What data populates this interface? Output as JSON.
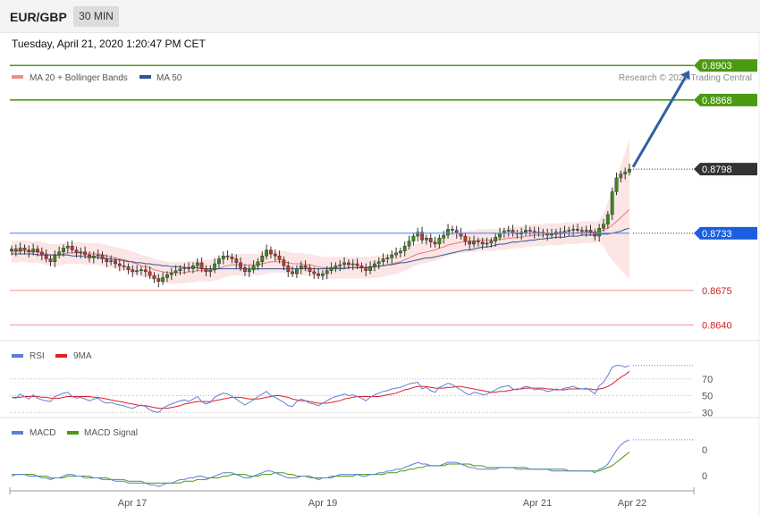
{
  "header": {
    "symbol": "EUR/GBP",
    "timeframe": "30 MIN",
    "datetime": "Tuesday, April 21, 2020 1:20:47 PM CET"
  },
  "chart_data": {
    "type": "candlestick",
    "copyright": "Research © 2020 Trading Central",
    "x_ticks": [
      "Apr 17",
      "Apr 19",
      "Apr 21",
      "Apr 22"
    ],
    "price_panel": {
      "legend": [
        {
          "name": "MA 20 + Bollinger Bands",
          "color": "#f08c8c"
        },
        {
          "name": "MA 50",
          "color": "#2f5597"
        }
      ],
      "ylim": [
        0.8625,
        0.8915
      ],
      "levels": [
        {
          "value": 0.8903,
          "label": "0.8903",
          "color": "#4c9a12",
          "kind": "resistance"
        },
        {
          "value": 0.8868,
          "label": "0.8868",
          "color": "#4c9a12",
          "kind": "resistance"
        },
        {
          "value": 0.8798,
          "label": "0.8798",
          "color": "#333333",
          "kind": "last"
        },
        {
          "value": 0.8733,
          "label": "0.8733",
          "color": "#1a5fe0",
          "kind": "pivot"
        },
        {
          "value": 0.8675,
          "label": "0.8675",
          "color": "#e06666",
          "kind": "support"
        },
        {
          "value": 0.864,
          "label": "0.8640",
          "color": "#e06666",
          "kind": "support"
        }
      ],
      "arrow": {
        "from": 0.88,
        "to": 0.8898
      },
      "closes": [
        0.8717,
        0.8715,
        0.8718,
        0.8716,
        0.8714,
        0.8717,
        0.8714,
        0.8711,
        0.8707,
        0.8704,
        0.8711,
        0.8714,
        0.8718,
        0.872,
        0.8716,
        0.8713,
        0.8714,
        0.8711,
        0.8708,
        0.871,
        0.8711,
        0.8707,
        0.8704,
        0.8705,
        0.8702,
        0.87,
        0.8699,
        0.8696,
        0.8694,
        0.8695,
        0.8696,
        0.8694,
        0.869,
        0.8687,
        0.8684,
        0.8688,
        0.8691,
        0.8693,
        0.8695,
        0.8697,
        0.8698,
        0.8697,
        0.87,
        0.8703,
        0.8697,
        0.8694,
        0.8696,
        0.8702,
        0.8707,
        0.871,
        0.8709,
        0.8707,
        0.8703,
        0.8698,
        0.8694,
        0.8696,
        0.87,
        0.8704,
        0.871,
        0.8716,
        0.8712,
        0.871,
        0.8706,
        0.87,
        0.8694,
        0.8692,
        0.8697,
        0.87,
        0.8698,
        0.8694,
        0.8692,
        0.869,
        0.8692,
        0.8695,
        0.8698,
        0.87,
        0.8701,
        0.8703,
        0.8701,
        0.8702,
        0.87,
        0.8698,
        0.8695,
        0.8699,
        0.8702,
        0.8704,
        0.8707,
        0.8708,
        0.8711,
        0.8713,
        0.8715,
        0.872,
        0.8725,
        0.873,
        0.8734,
        0.8726,
        0.8728,
        0.8724,
        0.8722,
        0.8728,
        0.8731,
        0.8737,
        0.8736,
        0.8733,
        0.873,
        0.8725,
        0.8722,
        0.8725,
        0.8724,
        0.8722,
        0.8723,
        0.8725,
        0.8729,
        0.8733,
        0.8735,
        0.8736,
        0.8733,
        0.8732,
        0.8734,
        0.8736,
        0.8735,
        0.8733,
        0.8734,
        0.8733,
        0.8731,
        0.8732,
        0.8734,
        0.8733,
        0.8735,
        0.8736,
        0.8737,
        0.8736,
        0.8735,
        0.8736,
        0.8734,
        0.873,
        0.8738,
        0.8742,
        0.8752,
        0.8775,
        0.8789,
        0.8793,
        0.8795,
        0.8798
      ],
      "ma20": [
        0.8714,
        0.8714,
        0.8715,
        0.8715,
        0.8714,
        0.8714,
        0.8714,
        0.8713,
        0.8712,
        0.8711,
        0.8711,
        0.8711,
        0.8712,
        0.8713,
        0.8713,
        0.8713,
        0.8713,
        0.8712,
        0.8712,
        0.8712,
        0.8712,
        0.8711,
        0.871,
        0.8709,
        0.8708,
        0.8707,
        0.8706,
        0.8705,
        0.8703,
        0.8702,
        0.87,
        0.8699,
        0.8698,
        0.8696,
        0.8695,
        0.8694,
        0.8693,
        0.8693,
        0.8693,
        0.8693,
        0.8693,
        0.8694,
        0.8694,
        0.8695,
        0.8695,
        0.8695,
        0.8695,
        0.8696,
        0.8697,
        0.8699,
        0.87,
        0.8701,
        0.8701,
        0.8701,
        0.8701,
        0.8701,
        0.8701,
        0.8701,
        0.8702,
        0.8703,
        0.8704,
        0.8704,
        0.8704,
        0.8704,
        0.8703,
        0.8702,
        0.8702,
        0.8702,
        0.8701,
        0.8701,
        0.87,
        0.8699,
        0.8698,
        0.8698,
        0.8698,
        0.8698,
        0.8698,
        0.8698,
        0.8698,
        0.8698,
        0.8698,
        0.8698,
        0.8698,
        0.8698,
        0.8699,
        0.8699,
        0.87,
        0.8701,
        0.8702,
        0.8703,
        0.8704,
        0.8706,
        0.8708,
        0.871,
        0.8712,
        0.8713,
        0.8714,
        0.8715,
        0.8716,
        0.8718,
        0.8719,
        0.8721,
        0.8722,
        0.8723,
        0.8724,
        0.8724,
        0.8725,
        0.8725,
        0.8726,
        0.8726,
        0.8726,
        0.8726,
        0.8726,
        0.8727,
        0.8727,
        0.8728,
        0.8728,
        0.8729,
        0.8729,
        0.873,
        0.873,
        0.8731,
        0.8731,
        0.8731,
        0.8732,
        0.8732,
        0.8732,
        0.8732,
        0.8733,
        0.8733,
        0.8733,
        0.8733,
        0.8734,
        0.8734,
        0.8734,
        0.8734,
        0.8735,
        0.8736,
        0.8738,
        0.8741,
        0.8745,
        0.8749,
        0.8753,
        0.8757
      ],
      "ma50": [
        0.8712,
        0.8712,
        0.8712,
        0.8712,
        0.8712,
        0.8712,
        0.8711,
        0.8711,
        0.8711,
        0.8711,
        0.8711,
        0.8711,
        0.8711,
        0.8711,
        0.871,
        0.871,
        0.871,
        0.8709,
        0.8709,
        0.8709,
        0.8708,
        0.8708,
        0.8707,
        0.8707,
        0.8706,
        0.8706,
        0.8705,
        0.8704,
        0.8704,
        0.8703,
        0.8703,
        0.8702,
        0.8702,
        0.8701,
        0.8701,
        0.87,
        0.87,
        0.8699,
        0.8699,
        0.8699,
        0.8698,
        0.8698,
        0.8698,
        0.8698,
        0.8697,
        0.8697,
        0.8697,
        0.8697,
        0.8697,
        0.8697,
        0.8697,
        0.8697,
        0.8697,
        0.8697,
        0.8697,
        0.8697,
        0.8697,
        0.8697,
        0.8697,
        0.8697,
        0.8697,
        0.8697,
        0.8697,
        0.8697,
        0.8697,
        0.8697,
        0.8697,
        0.8697,
        0.8697,
        0.8697,
        0.8697,
        0.8697,
        0.8697,
        0.8697,
        0.8697,
        0.8697,
        0.8697,
        0.8697,
        0.8698,
        0.8698,
        0.8698,
        0.8698,
        0.8698,
        0.8699,
        0.8699,
        0.87,
        0.87,
        0.8701,
        0.8701,
        0.8702,
        0.8703,
        0.8703,
        0.8704,
        0.8705,
        0.8706,
        0.8707,
        0.8708,
        0.8708,
        0.8709,
        0.871,
        0.8711,
        0.8712,
        0.8713,
        0.8714,
        0.8715,
        0.8716,
        0.8716,
        0.8717,
        0.8718,
        0.8719,
        0.8719,
        0.872,
        0.8721,
        0.8722,
        0.8722,
        0.8723,
        0.8724,
        0.8724,
        0.8725,
        0.8725,
        0.8726,
        0.8726,
        0.8727,
        0.8727,
        0.8728,
        0.8728,
        0.8729,
        0.8729,
        0.8729,
        0.873,
        0.873,
        0.873,
        0.8731,
        0.8731,
        0.8731,
        0.8731,
        0.8732,
        0.8732,
        0.8732,
        0.8733,
        0.8734,
        0.8735,
        0.8737,
        0.8738
      ]
    },
    "rsi_panel": {
      "legend": [
        {
          "name": "RSI",
          "color": "#5b7fd6"
        },
        {
          "name": "9MA",
          "color": "#e02020"
        }
      ],
      "ylim": [
        25,
        90
      ],
      "levels": [
        70,
        50,
        30
      ],
      "tick_labels": [
        "70",
        "50",
        "30"
      ],
      "rsi": [
        48,
        47,
        52,
        49,
        46,
        51,
        47,
        45,
        44,
        43,
        49,
        51,
        53,
        54,
        49,
        47,
        48,
        46,
        44,
        46,
        47,
        43,
        41,
        42,
        40,
        39,
        38,
        36,
        35,
        37,
        39,
        37,
        33,
        31,
        30,
        35,
        38,
        40,
        42,
        44,
        45,
        43,
        46,
        49,
        43,
        40,
        42,
        48,
        51,
        53,
        52,
        49,
        46,
        42,
        39,
        42,
        45,
        49,
        52,
        55,
        50,
        48,
        45,
        42,
        38,
        37,
        43,
        46,
        44,
        41,
        40,
        38,
        41,
        44,
        47,
        49,
        50,
        52,
        50,
        51,
        49,
        47,
        44,
        48,
        51,
        53,
        55,
        56,
        58,
        59,
        60,
        62,
        64,
        65,
        66,
        58,
        60,
        56,
        54,
        60,
        62,
        65,
        63,
        60,
        57,
        53,
        51,
        54,
        53,
        51,
        52,
        54,
        57,
        60,
        61,
        62,
        58,
        57,
        59,
        61,
        60,
        57,
        58,
        57,
        55,
        56,
        58,
        57,
        59,
        60,
        61,
        59,
        58,
        59,
        56,
        52,
        62,
        66,
        74,
        84,
        86,
        86,
        84,
        86
      ],
      "ma9": [
        48,
        48,
        48,
        49,
        49,
        49,
        49,
        48,
        48,
        47,
        47,
        47,
        48,
        49,
        49,
        49,
        49,
        49,
        49,
        48,
        48,
        47,
        46,
        45,
        44,
        43,
        42,
        41,
        40,
        39,
        38,
        38,
        37,
        36,
        35,
        35,
        35,
        36,
        37,
        38,
        40,
        41,
        42,
        43,
        43,
        43,
        43,
        44,
        45,
        46,
        47,
        48,
        48,
        48,
        47,
        46,
        46,
        46,
        47,
        48,
        49,
        50,
        50,
        49,
        48,
        46,
        45,
        44,
        44,
        43,
        42,
        41,
        41,
        41,
        42,
        43,
        44,
        46,
        47,
        48,
        49,
        49,
        49,
        49,
        49,
        49,
        50,
        51,
        52,
        53,
        55,
        57,
        58,
        60,
        61,
        61,
        61,
        60,
        59,
        59,
        59,
        60,
        60,
        61,
        61,
        60,
        59,
        58,
        57,
        56,
        55,
        54,
        54,
        55,
        55,
        56,
        57,
        58,
        58,
        59,
        59,
        59,
        59,
        59,
        58,
        58,
        57,
        57,
        57,
        58,
        58,
        58,
        58,
        58,
        58,
        57,
        58,
        59,
        61,
        64,
        68,
        72,
        75,
        79
      ]
    },
    "macd_panel": {
      "legend": [
        {
          "name": "MACD",
          "color": "#5b7fd6"
        },
        {
          "name": "MACD Signal",
          "color": "#4c9a12"
        }
      ],
      "ylim": [
        -0.0008,
        0.0022
      ],
      "tick_labels": [
        "0",
        "0"
      ],
      "macd": [
        0.0,
        0.0001,
        0.0001,
        0.0001,
        0.0,
        0.0,
        0.0,
        -0.0001,
        -0.0001,
        -0.0002,
        -0.0001,
        -0.0001,
        0.0,
        0.0001,
        0.0001,
        0.0,
        0.0,
        -0.0001,
        -0.0001,
        -0.0001,
        -0.0001,
        -0.0002,
        -0.0002,
        -0.0002,
        -0.0003,
        -0.0003,
        -0.0003,
        -0.0004,
        -0.0004,
        -0.0004,
        -0.0004,
        -0.0004,
        -0.0005,
        -0.0005,
        -0.0006,
        -0.0005,
        -0.0004,
        -0.0004,
        -0.0003,
        -0.0002,
        -0.0002,
        -0.0001,
        -0.0001,
        0.0,
        0.0,
        -0.0001,
        -0.0001,
        0.0,
        0.0001,
        0.0002,
        0.0002,
        0.0002,
        0.0001,
        0.0,
        -0.0001,
        -0.0001,
        0.0,
        0.0001,
        0.0002,
        0.0003,
        0.0003,
        0.0002,
        0.0001,
        0.0,
        -0.0001,
        -0.0001,
        -0.0001,
        0.0,
        0.0,
        -0.0001,
        -0.0001,
        -0.0002,
        -0.0001,
        -0.0001,
        0.0,
        0.0,
        0.0001,
        0.0001,
        0.0001,
        0.0001,
        0.0001,
        0.0,
        0.0,
        0.0001,
        0.0001,
        0.0002,
        0.0002,
        0.0003,
        0.0003,
        0.0004,
        0.0004,
        0.0005,
        0.0006,
        0.0007,
        0.0008,
        0.0007,
        0.0007,
        0.0006,
        0.0006,
        0.0006,
        0.0007,
        0.0008,
        0.0008,
        0.0008,
        0.0007,
        0.0006,
        0.0005,
        0.0005,
        0.0004,
        0.0004,
        0.0004,
        0.0004,
        0.0004,
        0.0005,
        0.0005,
        0.0005,
        0.0005,
        0.0004,
        0.0004,
        0.0004,
        0.0004,
        0.0004,
        0.0004,
        0.0004,
        0.0004,
        0.0003,
        0.0003,
        0.0003,
        0.0003,
        0.0003,
        0.0003,
        0.0003,
        0.0003,
        0.0003,
        0.0003,
        0.0002,
        0.0004,
        0.0005,
        0.0007,
        0.0011,
        0.0015,
        0.0018,
        0.002,
        0.0021
      ],
      "signal": [
        0.0001,
        0.0001,
        0.0001,
        0.0001,
        0.0001,
        0.0001,
        0.0,
        0.0,
        0.0,
        -0.0001,
        -0.0001,
        -0.0001,
        -0.0001,
        0.0,
        0.0,
        0.0,
        0.0,
        0.0,
        0.0,
        -0.0001,
        -0.0001,
        -0.0001,
        -0.0001,
        -0.0002,
        -0.0002,
        -0.0002,
        -0.0002,
        -0.0003,
        -0.0003,
        -0.0003,
        -0.0003,
        -0.0004,
        -0.0004,
        -0.0004,
        -0.0004,
        -0.0004,
        -0.0004,
        -0.0004,
        -0.0004,
        -0.0004,
        -0.0003,
        -0.0003,
        -0.0003,
        -0.0002,
        -0.0002,
        -0.0002,
        -0.0001,
        -0.0001,
        -0.0001,
        0.0,
        0.0,
        0.0001,
        0.0001,
        0.0001,
        0.0001,
        0.0,
        0.0,
        0.0,
        0.0001,
        0.0001,
        0.0001,
        0.0002,
        0.0002,
        0.0002,
        0.0001,
        0.0001,
        0.0,
        0.0,
        0.0,
        0.0,
        -0.0001,
        -0.0001,
        -0.0001,
        -0.0001,
        -0.0001,
        0.0,
        0.0,
        0.0,
        0.0,
        0.0,
        0.0001,
        0.0001,
        0.0001,
        0.0001,
        0.0001,
        0.0001,
        0.0001,
        0.0002,
        0.0002,
        0.0002,
        0.0003,
        0.0003,
        0.0004,
        0.0004,
        0.0005,
        0.0005,
        0.0006,
        0.0006,
        0.0006,
        0.0006,
        0.0006,
        0.0007,
        0.0007,
        0.0007,
        0.0007,
        0.0007,
        0.0007,
        0.0006,
        0.0006,
        0.0006,
        0.0005,
        0.0005,
        0.0005,
        0.0005,
        0.0005,
        0.0005,
        0.0005,
        0.0005,
        0.0005,
        0.0005,
        0.0004,
        0.0004,
        0.0004,
        0.0004,
        0.0004,
        0.0004,
        0.0004,
        0.0004,
        0.0004,
        0.0003,
        0.0003,
        0.0003,
        0.0003,
        0.0003,
        0.0003,
        0.0003,
        0.0003,
        0.0004,
        0.0005,
        0.0006,
        0.0008,
        0.001,
        0.0012,
        0.0014
      ]
    }
  }
}
